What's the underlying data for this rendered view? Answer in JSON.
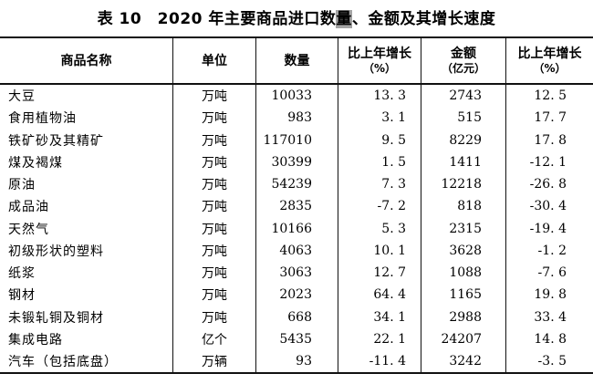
{
  "page": {
    "background": "#ffffff",
    "text_color": "#000000",
    "border_color": "#111111",
    "highlight_color": "#a3a3a3"
  },
  "title": {
    "part1": "表 10　2020 年主要商品进口数",
    "highlight": "量",
    "part2": "、金额及其增长速度"
  },
  "table": {
    "header": [
      {
        "label": "商品名称",
        "sub": ""
      },
      {
        "label": "单位",
        "sub": ""
      },
      {
        "label": "数量",
        "sub": ""
      },
      {
        "label": "比上年增长",
        "sub": "（%）"
      },
      {
        "label": "金额",
        "sub": "（亿元）"
      },
      {
        "label": "比上年增长",
        "sub": "（%）"
      }
    ],
    "rows": [
      {
        "name": "大豆",
        "unit": "万吨",
        "quantity": "10033",
        "qty_growth": "13. 3",
        "amount": "2743",
        "amt_growth": "12. 5"
      },
      {
        "name": "食用植物油",
        "unit": "万吨",
        "quantity": "983",
        "qty_growth": "3. 1",
        "amount": "515",
        "amt_growth": "17. 7"
      },
      {
        "name": "铁矿砂及其精矿",
        "unit": "万吨",
        "quantity": "117010",
        "qty_growth": "9. 5",
        "amount": "8229",
        "amt_growth": "17. 8"
      },
      {
        "name": "煤及褐煤",
        "unit": "万吨",
        "quantity": "30399",
        "qty_growth": "1. 5",
        "amount": "1411",
        "amt_growth": "-12. 1"
      },
      {
        "name": "原油",
        "unit": "万吨",
        "quantity": "54239",
        "qty_growth": "7. 3",
        "amount": "12218",
        "amt_growth": "-26. 8"
      },
      {
        "name": "成品油",
        "unit": "万吨",
        "quantity": "2835",
        "qty_growth": "-7. 2",
        "amount": "818",
        "amt_growth": "-30. 4"
      },
      {
        "name": "天然气",
        "unit": "万吨",
        "quantity": "10166",
        "qty_growth": "5. 3",
        "amount": "2315",
        "amt_growth": "-19. 4"
      },
      {
        "name": "初级形状的塑料",
        "unit": "万吨",
        "quantity": "4063",
        "qty_growth": "10. 1",
        "amount": "3628",
        "amt_growth": "-1. 2"
      },
      {
        "name": "纸浆",
        "unit": "万吨",
        "quantity": "3063",
        "qty_growth": "12. 7",
        "amount": "1088",
        "amt_growth": "-7. 6"
      },
      {
        "name": "钢材",
        "unit": "万吨",
        "quantity": "2023",
        "qty_growth": "64. 4",
        "amount": "1165",
        "amt_growth": "19. 8"
      },
      {
        "name": "未锻轧铜及铜材",
        "unit": "万吨",
        "quantity": "668",
        "qty_growth": "34. 1",
        "amount": "2988",
        "amt_growth": "33. 4"
      },
      {
        "name": "集成电路",
        "unit": "亿个",
        "quantity": "5435",
        "qty_growth": "22. 1",
        "amount": "24207",
        "amt_growth": "14. 8"
      },
      {
        "name": "汽车（包括底盘）",
        "unit": "万辆",
        "quantity": "93",
        "qty_growth": "-11. 4",
        "amount": "3242",
        "amt_growth": "-3. 5"
      }
    ]
  },
  "chart_data": {
    "type": "table",
    "title": "表10 2020年主要商品进口数量、金额及其增长速度",
    "columns": [
      "商品名称",
      "单位",
      "数量",
      "比上年增长（%）",
      "金额（亿元）",
      "比上年增长（%）"
    ],
    "rows": [
      [
        "大豆",
        "万吨",
        10033,
        13.3,
        2743,
        12.5
      ],
      [
        "食用植物油",
        "万吨",
        983,
        3.1,
        515,
        17.7
      ],
      [
        "铁矿砂及其精矿",
        "万吨",
        117010,
        9.5,
        8229,
        17.8
      ],
      [
        "煤及褐煤",
        "万吨",
        30399,
        1.5,
        1411,
        -12.1
      ],
      [
        "原油",
        "万吨",
        54239,
        7.3,
        12218,
        -26.8
      ],
      [
        "成品油",
        "万吨",
        2835,
        -7.2,
        818,
        -30.4
      ],
      [
        "天然气",
        "万吨",
        10166,
        5.3,
        2315,
        -19.4
      ],
      [
        "初级形状的塑料",
        "万吨",
        4063,
        10.1,
        3628,
        -1.2
      ],
      [
        "纸浆",
        "万吨",
        3063,
        12.7,
        1088,
        -7.6
      ],
      [
        "钢材",
        "万吨",
        2023,
        64.4,
        1165,
        19.8
      ],
      [
        "未锻轧铜及铜材",
        "万吨",
        668,
        34.1,
        2988,
        33.4
      ],
      [
        "集成电路",
        "亿个",
        5435,
        22.1,
        24207,
        14.8
      ],
      [
        "汽车（包括底盘）",
        "万辆",
        93,
        -11.4,
        3242,
        -3.5
      ]
    ]
  }
}
